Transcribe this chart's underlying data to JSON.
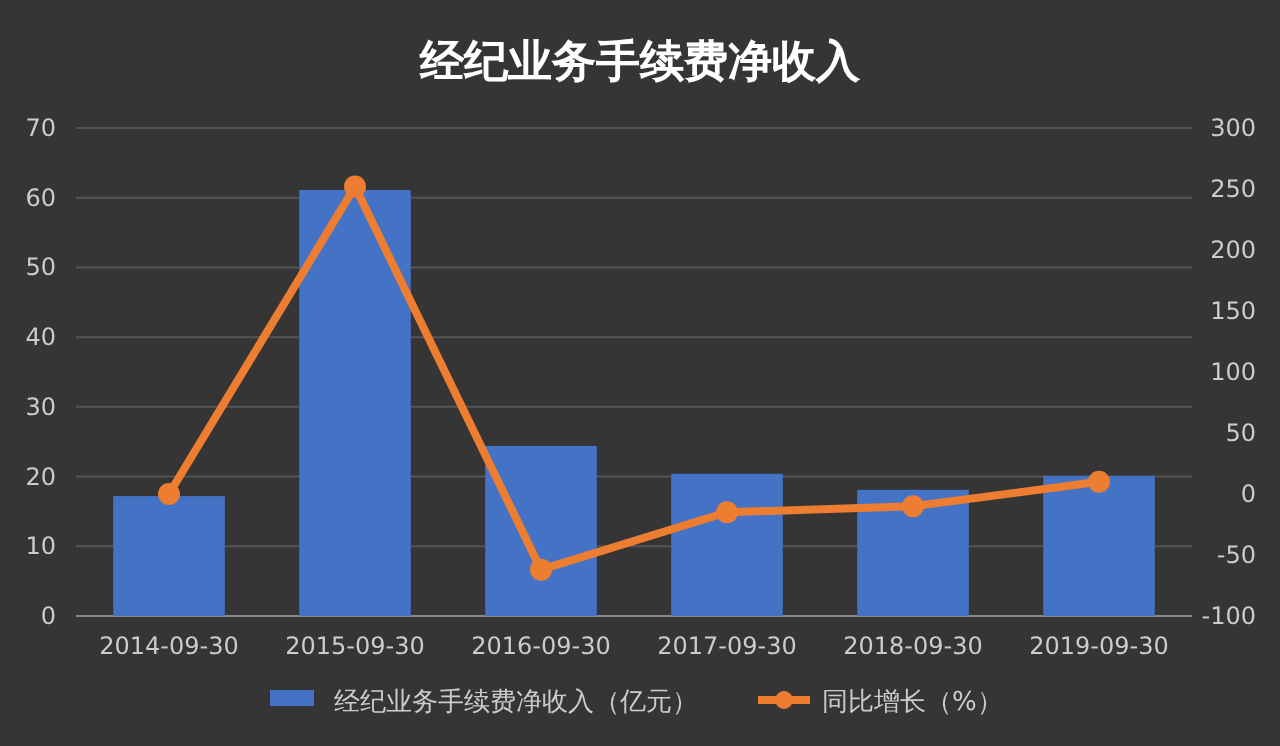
{
  "chart_data": {
    "type": "bar",
    "title": "经纪业务手续费净收入",
    "categories": [
      "2014-09-30",
      "2015-09-30",
      "2016-09-30",
      "2017-09-30",
      "2018-09-30",
      "2019-09-30"
    ],
    "series": [
      {
        "name": "经纪业务手续费净收入（亿元）",
        "color": "#4472c4",
        "values": [
          17.2,
          61.1,
          24.4,
          20.4,
          18.1,
          20.1
        ]
      },
      {
        "name": "同比增长（%）",
        "type": "line",
        "axis": "y2",
        "color": "#ed7d31",
        "marker": "circle",
        "values": [
          0,
          252,
          -62,
          -15,
          -10,
          10
        ]
      }
    ],
    "ylim": [
      0,
      70
    ],
    "yticks": [
      0,
      10,
      20,
      30,
      40,
      50,
      60,
      70
    ],
    "y2lim": [
      -100,
      300
    ],
    "y2ticks": [
      -100,
      -50,
      0,
      50,
      100,
      150,
      200,
      250,
      300
    ],
    "grid": "y",
    "legend": "bottom"
  }
}
